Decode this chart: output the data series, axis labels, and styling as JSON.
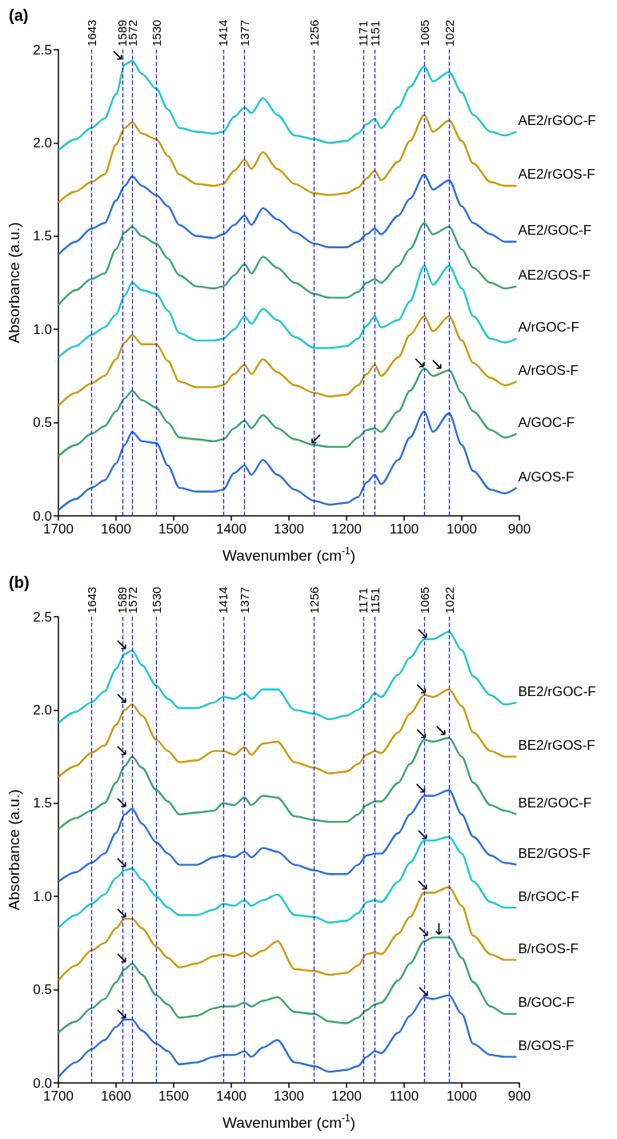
{
  "chart_data": [
    {
      "type": "line",
      "title": "(a)",
      "xlabel": "Wavenumber (cm$^{-1}$)",
      "ylabel": "Absorbance (a.u.)",
      "xlim": [
        1700,
        900
      ],
      "xticks": [
        1700,
        1600,
        1500,
        1400,
        1300,
        1200,
        1100,
        1000,
        900
      ],
      "ylim": [
        0,
        2.5
      ],
      "yticks": [
        {
          "value": 0,
          "label": "0.0"
        },
        {
          "value": 0.5,
          "label": "0.5"
        },
        {
          "value": 1,
          "label": "1.0"
        },
        {
          "value": 1.5,
          "label": "1.5"
        },
        {
          "value": 2,
          "label": "2.0"
        },
        {
          "value": 2.5,
          "label": "2.5"
        }
      ],
      "x": [
        1700,
        1670,
        1643,
        1620,
        1600,
        1585,
        1572,
        1555,
        1530,
        1510,
        1490,
        1460,
        1430,
        1414,
        1395,
        1377,
        1365,
        1345,
        1320,
        1290,
        1256,
        1230,
        1200,
        1180,
        1165,
        1151,
        1140,
        1110,
        1090,
        1065,
        1050,
        1022,
        1000,
        980,
        950,
        925,
        905
      ],
      "series": [
        {
          "name": "AE2/rGOC-F",
          "color": "#1cc8cf",
          "values": [
            1.96,
            2.02,
            2.08,
            2.13,
            2.26,
            2.42,
            2.44,
            2.37,
            2.29,
            2.18,
            2.08,
            2.06,
            2.05,
            2.06,
            2.14,
            2.19,
            2.16,
            2.24,
            2.15,
            2.04,
            2.02,
            2.0,
            2.01,
            2.05,
            2.1,
            2.13,
            2.08,
            2.19,
            2.3,
            2.41,
            2.33,
            2.38,
            2.27,
            2.15,
            2.06,
            2.04,
            2.06
          ]
        },
        {
          "name": "AE2/rGOS-F",
          "color": "#cc9a08",
          "values": [
            1.68,
            1.74,
            1.79,
            1.83,
            1.99,
            2.08,
            2.11,
            2.05,
            2.02,
            1.93,
            1.83,
            1.78,
            1.77,
            1.78,
            1.85,
            1.91,
            1.86,
            1.95,
            1.86,
            1.78,
            1.73,
            1.72,
            1.73,
            1.76,
            1.81,
            1.85,
            1.8,
            1.9,
            2.01,
            2.15,
            2.06,
            2.12,
            2.01,
            1.89,
            1.79,
            1.77,
            1.77
          ]
        },
        {
          "name": "AE2/GOC-F",
          "color": "#2a6fdb",
          "values": [
            1.4,
            1.47,
            1.54,
            1.57,
            1.69,
            1.77,
            1.82,
            1.77,
            1.72,
            1.66,
            1.56,
            1.5,
            1.49,
            1.51,
            1.56,
            1.61,
            1.56,
            1.65,
            1.59,
            1.52,
            1.46,
            1.44,
            1.44,
            1.47,
            1.51,
            1.54,
            1.51,
            1.61,
            1.7,
            1.83,
            1.75,
            1.8,
            1.66,
            1.57,
            1.51,
            1.47,
            1.47
          ]
        },
        {
          "name": "AE2/GOS-F",
          "color": "#3aa66a",
          "values": [
            1.13,
            1.21,
            1.27,
            1.3,
            1.43,
            1.52,
            1.55,
            1.5,
            1.46,
            1.38,
            1.29,
            1.23,
            1.22,
            1.23,
            1.29,
            1.35,
            1.3,
            1.39,
            1.33,
            1.25,
            1.19,
            1.17,
            1.17,
            1.2,
            1.25,
            1.27,
            1.25,
            1.34,
            1.43,
            1.57,
            1.51,
            1.55,
            1.43,
            1.33,
            1.25,
            1.22,
            1.23
          ]
        },
        {
          "name": "A/rGOC-F",
          "color": "#1cc8cf",
          "values": [
            0.85,
            0.91,
            0.97,
            1.01,
            1.08,
            1.18,
            1.25,
            1.21,
            1.19,
            1.1,
            0.98,
            0.94,
            0.94,
            0.95,
            1.0,
            1.07,
            1.03,
            1.11,
            1.05,
            0.96,
            0.9,
            0.9,
            0.91,
            0.95,
            1.02,
            1.07,
            1.01,
            1.05,
            1.15,
            1.34,
            1.24,
            1.34,
            1.22,
            1.07,
            0.95,
            0.93,
            0.95
          ]
        },
        {
          "name": "A/rGOS-F",
          "color": "#cc9a08",
          "values": [
            0.59,
            0.66,
            0.71,
            0.75,
            0.84,
            0.93,
            0.97,
            0.92,
            0.92,
            0.83,
            0.72,
            0.69,
            0.69,
            0.7,
            0.76,
            0.81,
            0.76,
            0.84,
            0.77,
            0.7,
            0.66,
            0.64,
            0.65,
            0.7,
            0.76,
            0.81,
            0.75,
            0.85,
            0.97,
            1.07,
            0.99,
            1.07,
            0.94,
            0.82,
            0.74,
            0.7,
            0.72
          ]
        },
        {
          "name": "A/GOC-F",
          "color": "#3aa66a",
          "values": [
            0.32,
            0.38,
            0.44,
            0.48,
            0.56,
            0.63,
            0.67,
            0.62,
            0.58,
            0.5,
            0.42,
            0.41,
            0.4,
            0.41,
            0.47,
            0.51,
            0.47,
            0.54,
            0.47,
            0.41,
            0.38,
            0.37,
            0.37,
            0.42,
            0.46,
            0.47,
            0.45,
            0.56,
            0.67,
            0.79,
            0.75,
            0.78,
            0.66,
            0.56,
            0.46,
            0.42,
            0.44
          ]
        },
        {
          "name": "A/GOS-F",
          "color": "#2a6fdb",
          "values": [
            0.03,
            0.09,
            0.15,
            0.19,
            0.28,
            0.38,
            0.45,
            0.4,
            0.39,
            0.27,
            0.15,
            0.13,
            0.13,
            0.14,
            0.23,
            0.27,
            0.22,
            0.3,
            0.22,
            0.14,
            0.08,
            0.06,
            0.07,
            0.1,
            0.18,
            0.22,
            0.17,
            0.3,
            0.42,
            0.56,
            0.45,
            0.55,
            0.38,
            0.24,
            0.14,
            0.12,
            0.15
          ]
        }
      ],
      "ref_lines": [
        {
          "axis": "x",
          "value": 1643,
          "label": "1643",
          "color": "#1f1fff",
          "line_style": "dashed"
        },
        {
          "axis": "x",
          "value": 1589,
          "label": "1589",
          "color": "#1f1fff",
          "line_style": "dashed"
        },
        {
          "axis": "x",
          "value": 1572,
          "label": "1572",
          "color": "#1f1fff",
          "line_style": "dashed"
        },
        {
          "axis": "x",
          "value": 1530,
          "label": "1530",
          "color": "#1f1fff",
          "line_style": "dashed"
        },
        {
          "axis": "x",
          "value": 1414,
          "label": "1414",
          "color": "#1f1fff",
          "line_style": "dashed"
        },
        {
          "axis": "x",
          "value": 1377,
          "label": "1377",
          "color": "#1f1fff",
          "line_style": "dashed"
        },
        {
          "axis": "x",
          "value": 1256,
          "label": "1256",
          "color": "#1f1fff",
          "line_style": "dashed"
        },
        {
          "axis": "x",
          "value": 1171,
          "label": "1171",
          "color": "#1f1fff",
          "line_style": "dashed"
        },
        {
          "axis": "x",
          "value": 1151,
          "label": "1151",
          "color": "#1f1fff",
          "line_style": "dashed"
        },
        {
          "axis": "x",
          "value": 1065,
          "label": "1065",
          "color": "#1f1fff",
          "line_style": "dashed"
        },
        {
          "axis": "x",
          "value": 1022,
          "label": "1022",
          "color": "#1f1fff",
          "line_style": "dashed"
        }
      ],
      "annotations": [
        {
          "text": "↘",
          "x": 1589,
          "y": 2.45
        },
        {
          "text": "↘",
          "x": 1065,
          "y": 0.8
        },
        {
          "text": "↘",
          "x": 1035,
          "y": 0.79
        },
        {
          "text": "↙",
          "x": 1245,
          "y": 0.39
        }
      ]
    },
    {
      "type": "line",
      "title": "(b)",
      "xlabel": "Wavenumber (cm$^{-1}$)",
      "ylabel": "Absorbance (a.u.)",
      "xlim": [
        1700,
        900
      ],
      "xticks": [
        1700,
        1600,
        1500,
        1400,
        1300,
        1200,
        1100,
        1000,
        900
      ],
      "ylim": [
        0,
        2.5
      ],
      "yticks": [
        {
          "value": 0,
          "label": "0.0"
        },
        {
          "value": 0.5,
          "label": "0.5"
        },
        {
          "value": 1,
          "label": "1.0"
        },
        {
          "value": 1.5,
          "label": "1.5"
        },
        {
          "value": 2,
          "label": "2.0"
        },
        {
          "value": 2.5,
          "label": "2.5"
        }
      ],
      "x": [
        1700,
        1670,
        1643,
        1620,
        1600,
        1585,
        1572,
        1555,
        1530,
        1510,
        1490,
        1460,
        1430,
        1414,
        1395,
        1377,
        1365,
        1345,
        1320,
        1290,
        1256,
        1230,
        1200,
        1180,
        1165,
        1151,
        1140,
        1110,
        1090,
        1065,
        1050,
        1022,
        1000,
        980,
        950,
        925,
        905
      ],
      "series": [
        {
          "name": "BE2/rGOC-F",
          "color": "#1cc8cf",
          "values": [
            1.93,
            1.99,
            2.04,
            2.1,
            2.22,
            2.3,
            2.32,
            2.24,
            2.13,
            2.06,
            2.01,
            2.01,
            2.04,
            2.07,
            2.06,
            2.09,
            2.06,
            2.11,
            2.11,
            2.0,
            1.98,
            1.95,
            1.97,
            2.0,
            2.04,
            2.09,
            2.07,
            2.19,
            2.28,
            2.38,
            2.38,
            2.42,
            2.32,
            2.18,
            2.08,
            2.03,
            2.04
          ]
        },
        {
          "name": "BE2/rGOS-F",
          "color": "#cc9a08",
          "values": [
            1.64,
            1.7,
            1.77,
            1.81,
            1.92,
            2.0,
            2.03,
            1.97,
            1.84,
            1.78,
            1.72,
            1.73,
            1.78,
            1.78,
            1.76,
            1.8,
            1.76,
            1.82,
            1.83,
            1.72,
            1.69,
            1.66,
            1.67,
            1.71,
            1.76,
            1.78,
            1.77,
            1.88,
            1.98,
            2.08,
            2.07,
            2.11,
            2.02,
            1.88,
            1.78,
            1.75,
            1.75
          ]
        },
        {
          "name": "BE2/GOC-F",
          "color": "#3aa66a",
          "values": [
            1.36,
            1.42,
            1.46,
            1.5,
            1.61,
            1.7,
            1.75,
            1.69,
            1.57,
            1.51,
            1.44,
            1.45,
            1.46,
            1.5,
            1.49,
            1.53,
            1.49,
            1.54,
            1.53,
            1.43,
            1.41,
            1.4,
            1.4,
            1.44,
            1.49,
            1.51,
            1.51,
            1.61,
            1.71,
            1.84,
            1.83,
            1.85,
            1.75,
            1.61,
            1.49,
            1.46,
            1.44
          ]
        },
        {
          "name": "BE2/GOS-F",
          "color": "#2a6fdb",
          "values": [
            1.08,
            1.13,
            1.18,
            1.23,
            1.34,
            1.44,
            1.47,
            1.39,
            1.29,
            1.23,
            1.17,
            1.17,
            1.21,
            1.22,
            1.21,
            1.24,
            1.21,
            1.26,
            1.24,
            1.17,
            1.14,
            1.12,
            1.12,
            1.17,
            1.22,
            1.23,
            1.23,
            1.34,
            1.44,
            1.54,
            1.54,
            1.57,
            1.44,
            1.32,
            1.22,
            1.18,
            1.17
          ]
        },
        {
          "name": "B/rGOC-F",
          "color": "#1cc8cf",
          "values": [
            0.83,
            0.9,
            0.96,
            1.01,
            1.1,
            1.14,
            1.15,
            1.09,
            1.0,
            0.94,
            0.9,
            0.9,
            0.93,
            0.96,
            0.95,
            0.98,
            0.95,
            0.98,
            1.01,
            0.9,
            0.89,
            0.86,
            0.87,
            0.91,
            0.97,
            0.98,
            0.97,
            1.08,
            1.18,
            1.3,
            1.3,
            1.32,
            1.23,
            1.08,
            0.97,
            0.94,
            0.94
          ]
        },
        {
          "name": "B/rGOS-F",
          "color": "#cc9a08",
          "values": [
            0.55,
            0.63,
            0.71,
            0.75,
            0.83,
            0.88,
            0.88,
            0.83,
            0.73,
            0.67,
            0.62,
            0.64,
            0.68,
            0.69,
            0.68,
            0.7,
            0.68,
            0.71,
            0.76,
            0.61,
            0.6,
            0.58,
            0.59,
            0.63,
            0.69,
            0.7,
            0.69,
            0.8,
            0.89,
            1.02,
            1.02,
            1.05,
            0.95,
            0.79,
            0.69,
            0.66,
            0.66
          ]
        },
        {
          "name": "B/GOC-F",
          "color": "#3aa66a",
          "values": [
            0.27,
            0.33,
            0.4,
            0.45,
            0.54,
            0.61,
            0.64,
            0.58,
            0.47,
            0.42,
            0.35,
            0.36,
            0.4,
            0.41,
            0.41,
            0.43,
            0.41,
            0.44,
            0.46,
            0.38,
            0.37,
            0.33,
            0.32,
            0.35,
            0.39,
            0.42,
            0.43,
            0.55,
            0.64,
            0.76,
            0.78,
            0.78,
            0.67,
            0.54,
            0.41,
            0.37,
            0.37
          ]
        },
        {
          "name": "B/GOS-F",
          "color": "#2a6fdb",
          "values": [
            0.03,
            0.11,
            0.18,
            0.23,
            0.3,
            0.34,
            0.34,
            0.28,
            0.21,
            0.17,
            0.1,
            0.11,
            0.14,
            0.15,
            0.15,
            0.17,
            0.14,
            0.19,
            0.23,
            0.11,
            0.09,
            0.06,
            0.07,
            0.09,
            0.14,
            0.17,
            0.16,
            0.27,
            0.36,
            0.46,
            0.45,
            0.47,
            0.37,
            0.21,
            0.15,
            0.14,
            0.14
          ]
        }
      ],
      "ref_lines": [
        {
          "axis": "x",
          "value": 1643,
          "label": "1643",
          "color": "#1f1fff",
          "line_style": "dashed"
        },
        {
          "axis": "x",
          "value": 1589,
          "label": "1589",
          "color": "#1f1fff",
          "line_style": "dashed"
        },
        {
          "axis": "x",
          "value": 1572,
          "label": "1572",
          "color": "#1f1fff",
          "line_style": "dashed"
        },
        {
          "axis": "x",
          "value": 1530,
          "label": "1530",
          "color": "#1f1fff",
          "line_style": "dashed"
        },
        {
          "axis": "x",
          "value": 1414,
          "label": "1414",
          "color": "#1f1fff",
          "line_style": "dashed"
        },
        {
          "axis": "x",
          "value": 1377,
          "label": "1377",
          "color": "#1f1fff",
          "line_style": "dashed"
        },
        {
          "axis": "x",
          "value": 1256,
          "label": "1256",
          "color": "#1f1fff",
          "line_style": "dashed"
        },
        {
          "axis": "x",
          "value": 1171,
          "label": "1171",
          "color": "#1f1fff",
          "line_style": "dashed"
        },
        {
          "axis": "x",
          "value": 1151,
          "label": "1151",
          "color": "#1f1fff",
          "line_style": "dashed"
        },
        {
          "axis": "x",
          "value": 1065,
          "label": "1065",
          "color": "#1f1fff",
          "line_style": "dashed"
        },
        {
          "axis": "x",
          "value": 1022,
          "label": "1022",
          "color": "#1f1fff",
          "line_style": "dashed"
        }
      ],
      "annotations": [
        {
          "text": "↘",
          "x": 1582,
          "y": 2.33
        },
        {
          "text": "↘",
          "x": 1582,
          "y": 2.04
        },
        {
          "text": "↘",
          "x": 1582,
          "y": 1.76
        },
        {
          "text": "↘",
          "x": 1582,
          "y": 1.48
        },
        {
          "text": "↘",
          "x": 1582,
          "y": 1.16
        },
        {
          "text": "↘",
          "x": 1582,
          "y": 0.89
        },
        {
          "text": "↘",
          "x": 1582,
          "y": 0.65
        },
        {
          "text": "↘",
          "x": 1582,
          "y": 0.35
        },
        {
          "text": "↘",
          "x": 1060,
          "y": 2.39
        },
        {
          "text": "↘",
          "x": 1062,
          "y": 2.09
        },
        {
          "text": "↘",
          "x": 1062,
          "y": 1.85
        },
        {
          "text": "↘",
          "x": 1028,
          "y": 1.87
        },
        {
          "text": "↘",
          "x": 1063,
          "y": 1.56
        },
        {
          "text": "↘",
          "x": 1060,
          "y": 1.31
        },
        {
          "text": "↘",
          "x": 1060,
          "y": 1.04
        },
        {
          "text": "↘",
          "x": 1058,
          "y": 0.79
        },
        {
          "text": "↓",
          "x": 1031,
          "y": 0.8
        },
        {
          "text": "↘",
          "x": 1058,
          "y": 0.47
        }
      ]
    }
  ]
}
